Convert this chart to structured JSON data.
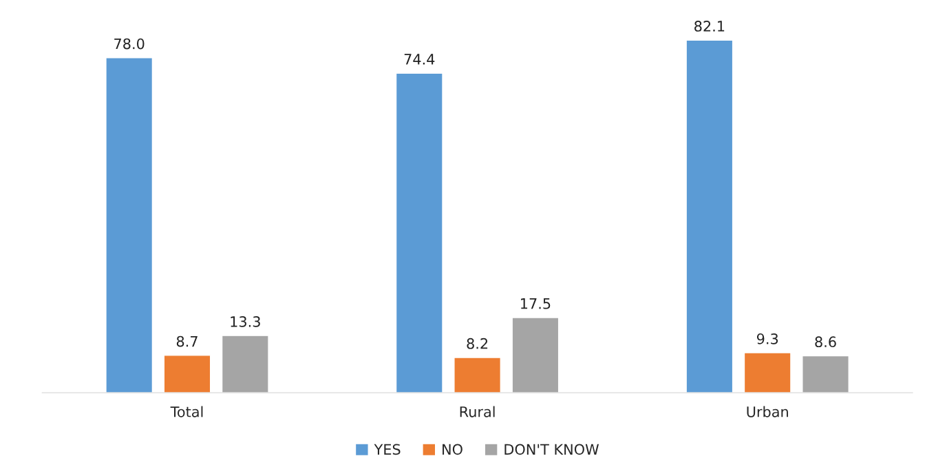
{
  "chart_data": {
    "type": "bar",
    "categories": [
      "Total",
      "Rural",
      "Urban"
    ],
    "series": [
      {
        "name": "YES",
        "color": "#5b9bd5",
        "values": [
          78.0,
          74.4,
          82.1
        ],
        "value_labels": [
          "78.0",
          "74.4",
          "82.1"
        ]
      },
      {
        "name": "NO",
        "color": "#ed7d31",
        "values": [
          8.7,
          8.2,
          9.3
        ],
        "value_labels": [
          "8.7",
          "8.2",
          "9.3"
        ]
      },
      {
        "name": "DON'T KNOW",
        "color": "#a5a5a5",
        "values": [
          13.3,
          17.5,
          8.6
        ],
        "value_labels": [
          "13.3",
          "17.5",
          "8.6"
        ]
      }
    ],
    "legend": "bottom"
  }
}
